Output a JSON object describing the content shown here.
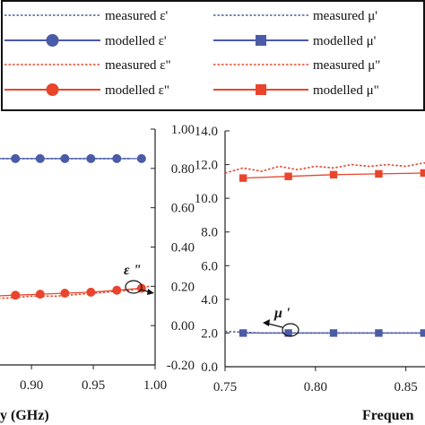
{
  "legend": {
    "entries": [
      {
        "label": "measured ε'",
        "color": "#4a5ba8",
        "style": "dotted",
        "marker": "none"
      },
      {
        "label": "measured μ'",
        "color": "#4a5ba8",
        "style": "dotted",
        "marker": "none"
      },
      {
        "label": "modelled ε'",
        "color": "#4a5ba8",
        "style": "solid",
        "marker": "circle"
      },
      {
        "label": "modelled μ'",
        "color": "#4a5ba8",
        "style": "solid",
        "marker": "square"
      },
      {
        "label": "measured ε\"",
        "color": "#e8452c",
        "style": "dotted",
        "marker": "none"
      },
      {
        "label": "measured μ\"",
        "color": "#e8452c",
        "style": "dotted",
        "marker": "none"
      },
      {
        "label": "modelled ε\"",
        "color": "#e8452c",
        "style": "solid",
        "marker": "circle"
      },
      {
        "label": "modelled μ\"",
        "color": "#e8452c",
        "style": "solid",
        "marker": "square"
      }
    ]
  },
  "chart_data": [
    {
      "type": "line",
      "xlabel": "y (GHz)",
      "ylabel": "",
      "xlim": [
        0.86,
        1.0
      ],
      "ylim": [
        -0.2,
        1.0
      ],
      "xticks": [
        "0.90",
        "0.95",
        "1.00"
      ],
      "xtick_values": [
        0.9,
        0.95,
        1.0
      ],
      "yticks": [
        "-0.20",
        "0.00",
        "0.20",
        "0.40",
        "0.60",
        "0.80",
        "1.00"
      ],
      "ytick_values": [
        -0.2,
        0.0,
        0.2,
        0.4,
        0.6,
        0.8,
        1.0
      ],
      "yaxis_side": "right",
      "annotation": "ε \"",
      "series": [
        {
          "name": "measured ε'",
          "color": "#4a5ba8",
          "style": "dotted",
          "x": [
            0.86,
            0.88,
            0.9,
            0.92,
            0.94,
            0.96,
            0.98
          ],
          "y": [
            0.85,
            0.85,
            0.85,
            0.85,
            0.85,
            0.85,
            0.85
          ]
        },
        {
          "name": "modelled ε'",
          "color": "#4a5ba8",
          "style": "solid",
          "marker": "circle",
          "x": [
            0.867,
            0.887,
            0.907,
            0.927,
            0.948,
            0.969,
            0.989
          ],
          "y": [
            0.85,
            0.85,
            0.85,
            0.85,
            0.85,
            0.85,
            0.85
          ]
        },
        {
          "name": "measured ε\"",
          "color": "#e8452c",
          "style": "dotted",
          "x": [
            0.86,
            0.88,
            0.9,
            0.92,
            0.94,
            0.96,
            0.98,
            0.995
          ],
          "y": [
            0.14,
            0.14,
            0.15,
            0.15,
            0.16,
            0.17,
            0.18,
            0.2
          ]
        },
        {
          "name": "modelled ε\"",
          "color": "#e8452c",
          "style": "solid",
          "marker": "circle",
          "x": [
            0.867,
            0.887,
            0.907,
            0.927,
            0.948,
            0.969,
            0.989
          ],
          "y": [
            0.15,
            0.155,
            0.16,
            0.165,
            0.17,
            0.18,
            0.19
          ]
        }
      ]
    },
    {
      "type": "line",
      "xlabel": "Frequen",
      "ylabel": "",
      "xlim": [
        0.75,
        0.87
      ],
      "ylim": [
        0.0,
        14.0
      ],
      "xticks": [
        "0.75",
        "0.80",
        "0.85"
      ],
      "xtick_values": [
        0.75,
        0.8,
        0.85
      ],
      "yticks": [
        "0.0",
        "2.0",
        "4.0",
        "6.0",
        "8.0",
        "10.0",
        "12.0",
        "14.0"
      ],
      "ytick_values": [
        0,
        2,
        4,
        6,
        8,
        10,
        12,
        14
      ],
      "yaxis_side": "left",
      "annotation": "μ '",
      "series": [
        {
          "name": "measured μ'",
          "color": "#4a5ba8",
          "style": "dotted",
          "x": [
            0.75,
            0.77,
            0.79,
            0.81,
            0.83,
            0.85,
            0.87
          ],
          "y": [
            2.1,
            2.0,
            2.0,
            2.0,
            2.0,
            2.0,
            2.0
          ]
        },
        {
          "name": "modelled μ'",
          "color": "#4a5ba8",
          "style": "solid",
          "marker": "square",
          "x": [
            0.76,
            0.785,
            0.81,
            0.835,
            0.86
          ],
          "y": [
            2.0,
            2.0,
            2.0,
            2.0,
            2.0
          ]
        },
        {
          "name": "measured μ\"",
          "color": "#e8452c",
          "style": "dotted",
          "x": [
            0.75,
            0.76,
            0.77,
            0.78,
            0.79,
            0.8,
            0.81,
            0.82,
            0.83,
            0.84,
            0.85,
            0.86,
            0.87
          ],
          "y": [
            11.5,
            11.8,
            11.6,
            11.9,
            11.7,
            11.9,
            11.8,
            12.0,
            11.9,
            12.0,
            11.9,
            12.1,
            12.0
          ]
        },
        {
          "name": "modelled μ\"",
          "color": "#e8452c",
          "style": "solid",
          "marker": "square",
          "x": [
            0.76,
            0.785,
            0.81,
            0.835,
            0.86
          ],
          "y": [
            11.2,
            11.3,
            11.4,
            11.45,
            11.5
          ]
        }
      ]
    }
  ]
}
